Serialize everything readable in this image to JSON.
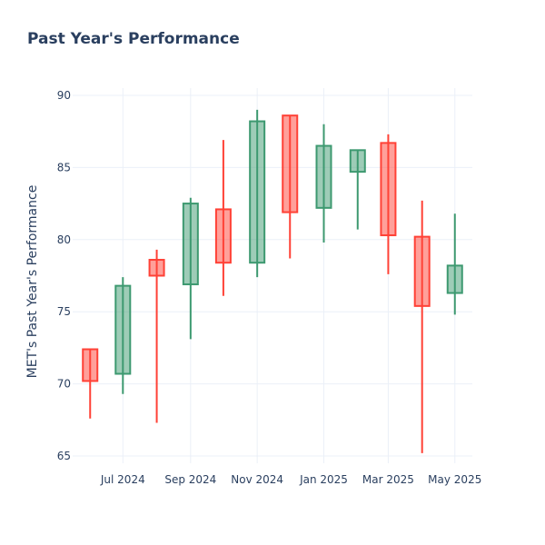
{
  "chart_data": {
    "type": "candlestick",
    "title": "Past Year's Performance",
    "ylabel": "MET's Past Year's Performance",
    "xlabel": "",
    "ylim": [
      64.5,
      90.5
    ],
    "yticks": [
      65,
      70,
      75,
      80,
      85,
      90
    ],
    "xticks": [
      {
        "label": "Jul 2024",
        "date": "2024-07-01"
      },
      {
        "label": "Sep 2024",
        "date": "2024-09-01"
      },
      {
        "label": "Nov 2024",
        "date": "2024-11-01"
      },
      {
        "label": "Jan 2025",
        "date": "2025-01-01"
      },
      {
        "label": "Mar 2025",
        "date": "2025-03-01"
      },
      {
        "label": "May 2025",
        "date": "2025-05-01"
      }
    ],
    "grid": true,
    "colors": {
      "increasing_line": "#3d9970",
      "increasing_fill": "rgba(61,153,112,0.5)",
      "decreasing_line": "#ff4136",
      "decreasing_fill": "rgba(255,65,54,0.5)"
    },
    "candles": [
      {
        "date": "2024-06-01",
        "open": 72.4,
        "high": 72.4,
        "low": 67.6,
        "close": 70.2
      },
      {
        "date": "2024-07-01",
        "open": 70.7,
        "high": 77.4,
        "low": 69.3,
        "close": 76.8
      },
      {
        "date": "2024-08-01",
        "open": 78.6,
        "high": 79.3,
        "low": 67.3,
        "close": 77.5
      },
      {
        "date": "2024-09-01",
        "open": 76.9,
        "high": 82.9,
        "low": 73.1,
        "close": 82.5
      },
      {
        "date": "2024-10-01",
        "open": 82.1,
        "high": 86.9,
        "low": 76.1,
        "close": 78.4
      },
      {
        "date": "2024-11-01",
        "open": 78.4,
        "high": 89.0,
        "low": 77.4,
        "close": 88.2
      },
      {
        "date": "2024-12-01",
        "open": 88.6,
        "high": 88.6,
        "low": 78.7,
        "close": 81.9
      },
      {
        "date": "2025-01-01",
        "open": 82.2,
        "high": 88.0,
        "low": 79.8,
        "close": 86.5
      },
      {
        "date": "2025-02-01",
        "open": 84.7,
        "high": 86.2,
        "low": 80.7,
        "close": 86.2
      },
      {
        "date": "2025-03-01",
        "open": 86.7,
        "high": 87.3,
        "low": 77.6,
        "close": 80.3
      },
      {
        "date": "2025-04-01",
        "open": 80.2,
        "high": 82.7,
        "low": 65.2,
        "close": 75.4
      },
      {
        "date": "2025-05-01",
        "open": 76.3,
        "high": 81.8,
        "low": 74.8,
        "close": 78.2
      }
    ]
  }
}
